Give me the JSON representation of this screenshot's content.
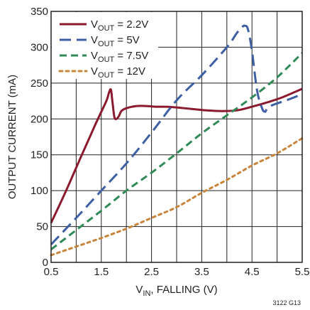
{
  "chart_data": {
    "type": "line",
    "xlabel": {
      "main": "V",
      "sub": "IN",
      "rest": ", FALLING (V)"
    },
    "ylabel": "OUTPUT CURRENT (mA)",
    "xlim": [
      0.5,
      5.5
    ],
    "ylim": [
      0,
      350
    ],
    "xticks": [
      0.5,
      1.5,
      2.5,
      3.5,
      4.5,
      5.5
    ],
    "xtick_labels": [
      "0.5",
      "1.5",
      "2.5",
      "3.5",
      "4.5",
      "5.5"
    ],
    "yticks": [
      0,
      50,
      100,
      150,
      200,
      250,
      300,
      350
    ],
    "ytick_labels": [
      "0",
      "50",
      "100",
      "150",
      "200",
      "250",
      "300",
      "350"
    ],
    "xgrid": [
      0.5,
      1.0,
      1.5,
      2.0,
      2.5,
      3.0,
      3.5,
      4.0,
      4.5,
      5.0,
      5.5
    ],
    "ygrid": [
      0,
      50,
      100,
      150,
      200,
      250,
      300,
      350
    ],
    "grid": true,
    "legend_placement": "top-left",
    "note": "3122 G13",
    "series": [
      {
        "name": "VOUT = 2.2V",
        "legend": {
          "pre": "V",
          "sub": "OUT",
          "post": " = 2.2V"
        },
        "color": "#8b1a2e",
        "dash": "solid",
        "x": [
          0.5,
          0.8,
          1.1,
          1.4,
          1.6,
          1.65,
          1.69,
          1.72,
          1.76,
          1.8,
          1.85,
          1.9,
          2.0,
          2.2,
          2.4,
          2.6,
          2.8,
          3.0,
          3.3,
          3.6,
          3.9,
          4.2,
          4.5,
          4.8,
          5.1,
          5.5
        ],
        "y": [
          55,
          100,
          148,
          195,
          225,
          236,
          241,
          225,
          203,
          200,
          204,
          211,
          215,
          218,
          218,
          217,
          217,
          216,
          214,
          212,
          211,
          212,
          217,
          223,
          230,
          242
        ]
      },
      {
        "name": "VOUT = 5V",
        "legend": {
          "pre": "V",
          "sub": "OUT",
          "post": " = 5V"
        },
        "color": "#3e5fa3",
        "dash": "longdash",
        "x": [
          0.5,
          1.0,
          1.5,
          2.0,
          2.5,
          3.0,
          3.5,
          4.0,
          4.2,
          4.3,
          4.36,
          4.42,
          4.5,
          4.6,
          4.7,
          4.76,
          4.8,
          4.9,
          5.1,
          5.3,
          5.5
        ],
        "y": [
          25,
          62,
          100,
          138,
          181,
          226,
          261,
          300,
          320,
          328,
          330,
          325,
          295,
          240,
          215,
          210,
          214,
          219,
          224,
          229,
          235
        ]
      },
      {
        "name": "VOUT = 7.5V",
        "legend": {
          "pre": "V",
          "sub": "OUT",
          "post": " = 7.5V"
        },
        "color": "#2e8b57",
        "dash": "dash",
        "x": [
          0.5,
          1.0,
          1.5,
          2.0,
          2.5,
          3.0,
          3.5,
          4.0,
          4.5,
          5.0,
          5.5
        ],
        "y": [
          18,
          45,
          72,
          100,
          125,
          152,
          180,
          205,
          230,
          258,
          292
        ]
      },
      {
        "name": "VOUT = 12V",
        "legend": {
          "pre": "V",
          "sub": "OUT",
          "post": " = 12V"
        },
        "color": "#c8843a",
        "dash": "dot",
        "x": [
          0.5,
          1.0,
          1.5,
          2.0,
          2.5,
          3.0,
          3.5,
          4.0,
          4.5,
          5.0,
          5.5
        ],
        "y": [
          10,
          22,
          34,
          47,
          62,
          77,
          97,
          115,
          135,
          152,
          173
        ]
      }
    ]
  }
}
